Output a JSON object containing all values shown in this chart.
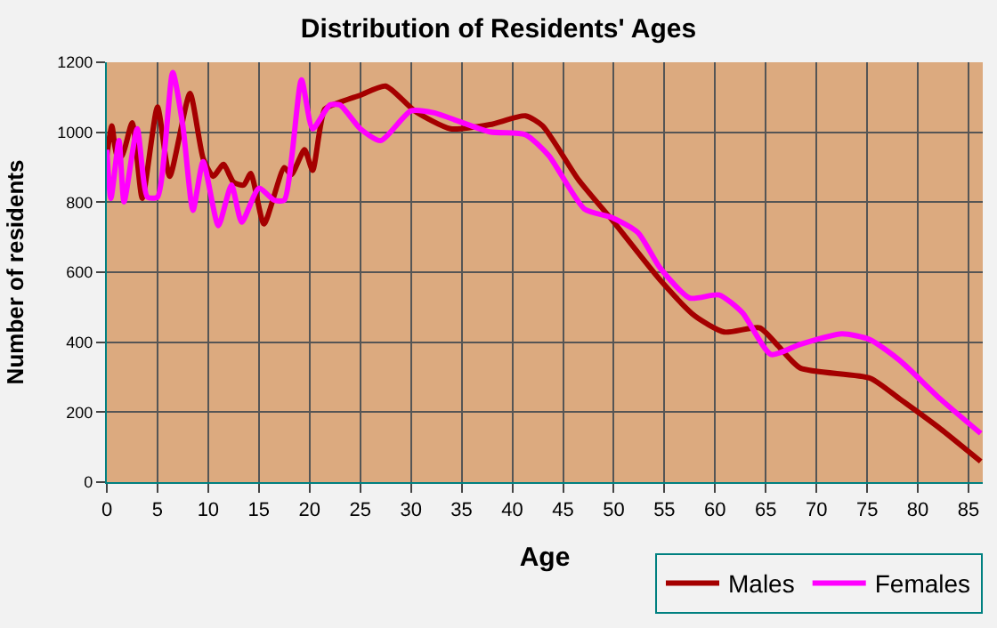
{
  "chart_data": {
    "type": "line",
    "title": "Distribution of Residents' Ages",
    "xlabel": "Age",
    "ylabel": "Number of residents",
    "xlim": [
      0,
      86.4
    ],
    "ylim": [
      0,
      1200
    ],
    "xticks": [
      0,
      5,
      10,
      15,
      20,
      25,
      30,
      35,
      40,
      45,
      50,
      55,
      60,
      65,
      70,
      75,
      80,
      85
    ],
    "yticks": [
      0,
      200,
      400,
      600,
      800,
      1000,
      1200
    ],
    "grid": true,
    "legend": "bottom right",
    "marker": "none",
    "line_style": "solid",
    "series": [
      {
        "name": "Males",
        "color": "#a50000",
        "x": [
          0,
          0.5,
          1,
          1.5,
          2.5,
          3.5,
          5,
          6.2,
          8.2,
          9.5,
          10.5,
          11.5,
          12.5,
          13.5,
          14.2,
          15.5,
          17.5,
          18.2,
          19.5,
          20.3,
          21.5,
          23,
          25,
          27.5,
          30.4,
          33.9,
          37.8,
          41.3,
          43,
          46.5,
          49.9,
          54.6,
          58,
          60.9,
          64.4,
          66.2,
          68.4,
          75.3,
          78.2,
          82.2,
          86.2
        ],
        "values": [
          933,
          1018,
          933,
          933,
          1027,
          811,
          1072,
          874,
          1111,
          925,
          874,
          908,
          857,
          849,
          882,
          738,
          899,
          879,
          950,
          891,
          1066,
          1086,
          1106,
          1132,
          1060,
          1010,
          1022,
          1047,
          1018,
          865,
          747,
          577,
          475,
          429,
          441,
          390,
          326,
          297,
          238,
          153,
          59
        ]
      },
      {
        "name": "Females",
        "color": "#ff00ff",
        "x": [
          0,
          0.4,
          1.2,
          1.7,
          3,
          4,
          5,
          6.5,
          7.5,
          8.5,
          9.5,
          11,
          12.3,
          13.3,
          15,
          16.5,
          17.5,
          19.2,
          20.3,
          22,
          23,
          25,
          27,
          30,
          32.2,
          37.8,
          41.3,
          43.6,
          47.1,
          49.9,
          52.4,
          54.6,
          57.5,
          60.4,
          62.7,
          65.5,
          68.4,
          72.5,
          75.3,
          78.2,
          82.2,
          86.2
        ],
        "values": [
          950,
          811,
          976,
          801,
          1010,
          815,
          815,
          1171,
          1018,
          777,
          916,
          733,
          849,
          743,
          840,
          806,
          806,
          1150,
          1010,
          1078,
          1078,
          1010,
          976,
          1061,
          1056,
          1001,
          993,
          933,
          781,
          755,
          713,
          611,
          526,
          535,
          484,
          365,
          394,
          424,
          407,
          348,
          238,
          139
        ]
      }
    ]
  }
}
